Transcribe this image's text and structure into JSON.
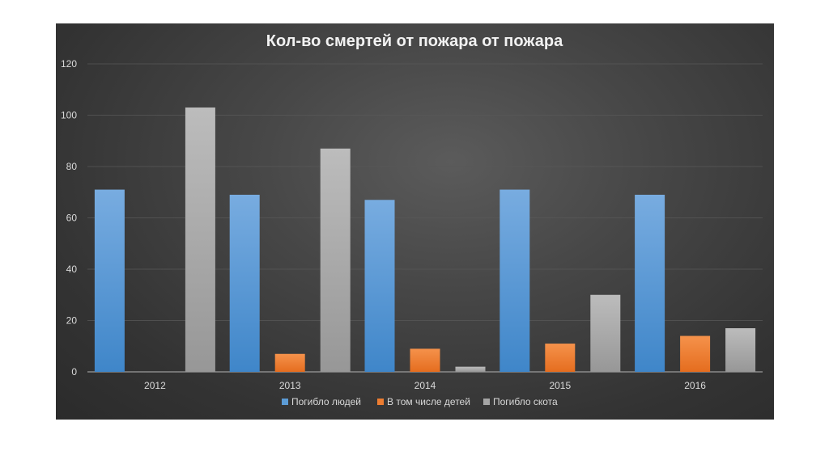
{
  "chart_data": {
    "type": "bar",
    "title": "Кол-во смертей от пожара от пожара",
    "xlabel": "",
    "ylabel": "",
    "categories": [
      "2012",
      "2013",
      "2014",
      "2015",
      "2016"
    ],
    "series": [
      {
        "name": "Погибло людей",
        "values": [
          71,
          69,
          67,
          71,
          69
        ],
        "color": "#5b9bd5"
      },
      {
        "name": "В том числе детей",
        "values": [
          0,
          7,
          9,
          11,
          14
        ],
        "color": "#ed7d31"
      },
      {
        "name": "Погибло скота",
        "values": [
          103,
          87,
          2,
          30,
          17
        ],
        "color": "#a5a5a5"
      }
    ],
    "ylim": [
      0,
      120
    ],
    "yticks": [
      "0",
      "20",
      "40",
      "60",
      "80",
      "100",
      "120"
    ],
    "grid": true,
    "legend_position": "bottom"
  }
}
